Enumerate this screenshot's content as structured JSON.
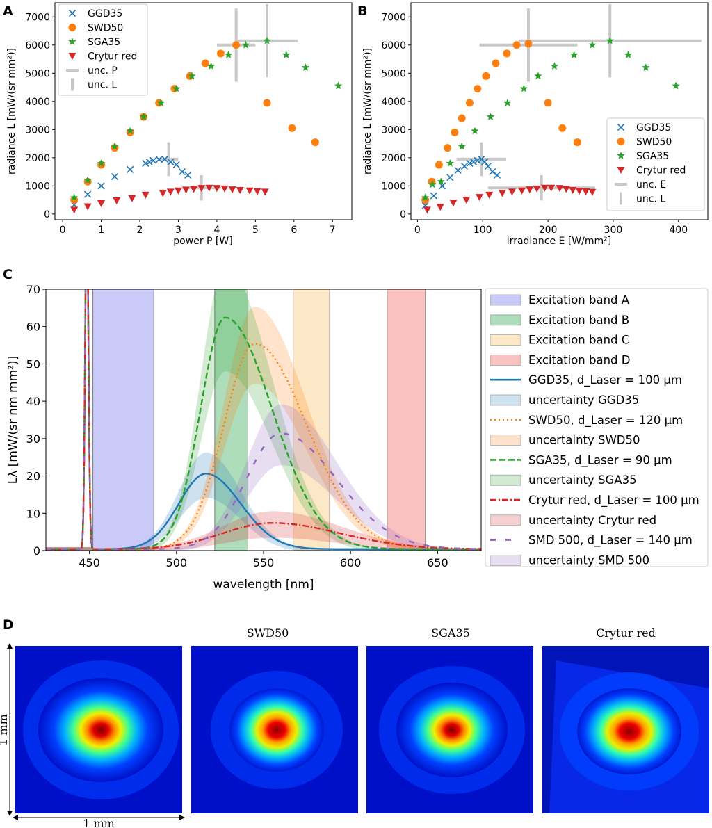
{
  "panels": {
    "A": {
      "label": "A"
    },
    "B": {
      "label": "B"
    },
    "C": {
      "label": "C"
    },
    "D": {
      "label": "D"
    }
  },
  "colors": {
    "GGD35": "#1f77b4",
    "SWD50": "#ff7f0e",
    "SGA35": "#2ca02c",
    "Crytur": "#d62728",
    "SMD500": "#9467bd",
    "unc": "#c8c8c8"
  },
  "chart_data": [
    {
      "id": "A",
      "type": "scatter",
      "xlabel": "power P [W]",
      "ylabel": "radiance L [mW/(sr mm²)]",
      "xlim": [
        -0.2,
        7.5
      ],
      "ylim": [
        -200,
        7500
      ],
      "xticks": [
        "0",
        "1",
        "2",
        "3",
        "4",
        "5",
        "6",
        "7"
      ],
      "yticks": [
        "0",
        "1000",
        "2000",
        "3000",
        "4000",
        "5000",
        "6000",
        "7000"
      ],
      "legend_position": "upper-left",
      "legend": [
        "GGD35",
        "SWD50",
        "SGA35",
        "Crytur red",
        "unc. P",
        "unc. L"
      ],
      "series": [
        {
          "name": "GGD35",
          "marker": "x",
          "x": [
            0.3,
            0.65,
            1.0,
            1.35,
            1.75,
            2.15,
            2.25,
            2.35,
            2.5,
            2.65,
            2.8,
            2.95,
            3.1,
            3.25
          ],
          "y": [
            330,
            700,
            1000,
            1330,
            1580,
            1800,
            1850,
            1900,
            1940,
            1950,
            1850,
            1750,
            1500,
            1380
          ]
        },
        {
          "name": "SWD50",
          "marker": "o",
          "x": [
            0.3,
            0.65,
            1.0,
            1.35,
            1.75,
            2.1,
            2.5,
            2.9,
            3.3,
            3.7,
            4.1,
            4.5,
            5.3,
            5.95,
            6.55
          ],
          "y": [
            500,
            1150,
            1750,
            2350,
            2900,
            3450,
            3950,
            4450,
            4900,
            5350,
            5700,
            6000,
            3950,
            3050,
            2550
          ]
        },
        {
          "name": "SGA35",
          "marker": "*",
          "x": [
            0.3,
            0.65,
            1.0,
            1.35,
            1.75,
            2.1,
            2.55,
            2.95,
            3.35,
            3.85,
            4.3,
            4.75,
            5.3,
            5.8,
            6.3,
            7.15
          ],
          "y": [
            580,
            1200,
            1800,
            2400,
            2950,
            3450,
            3950,
            4450,
            4900,
            5250,
            5650,
            6000,
            6150,
            5650,
            5200,
            4550
          ]
        },
        {
          "name": "Crytur red",
          "marker": "v",
          "x": [
            0.3,
            0.65,
            1.0,
            1.4,
            1.8,
            2.15,
            2.6,
            2.8,
            3.0,
            3.2,
            3.4,
            3.6,
            3.8,
            4.0,
            4.2,
            4.4,
            4.6,
            4.85,
            5.05,
            5.25
          ],
          "y": [
            150,
            270,
            380,
            480,
            560,
            680,
            740,
            790,
            830,
            860,
            890,
            920,
            930,
            920,
            900,
            870,
            850,
            830,
            810,
            790
          ]
        }
      ],
      "uncertainty": [
        {
          "x": 5.3,
          "y": 6150,
          "dx": 0.8,
          "dy": 1300
        },
        {
          "x": 4.5,
          "y": 6000,
          "dx": 0.5,
          "dy": 1300
        },
        {
          "x": 2.75,
          "y": 1950,
          "dx": 0.25,
          "dy": 600
        },
        {
          "x": 3.6,
          "y": 930,
          "dx": 0.5,
          "dy": 450
        }
      ]
    },
    {
      "id": "B",
      "type": "scatter",
      "xlabel": "irradiance E [W/mm²]",
      "ylabel": "radiance L [mW/(sr mm²)]",
      "xlim": [
        -10,
        445
      ],
      "ylim": [
        -200,
        7500
      ],
      "xticks": [
        "0",
        "100",
        "200",
        "300",
        "400"
      ],
      "yticks": [
        "0",
        "1000",
        "2000",
        "3000",
        "4000",
        "5000",
        "6000",
        "7000"
      ],
      "legend_position": "lower-right",
      "legend": [
        "GGD35",
        "SWD50",
        "SGA35",
        "Crytur red",
        "unc. E",
        "unc. L"
      ],
      "series": [
        {
          "name": "GGD35",
          "marker": "x",
          "x": [
            12,
            25,
            38,
            50,
            62,
            72,
            80,
            86,
            92,
            98,
            103,
            108,
            115,
            122
          ],
          "y": [
            300,
            650,
            1000,
            1300,
            1550,
            1700,
            1800,
            1850,
            1900,
            1950,
            1850,
            1700,
            1500,
            1380
          ]
        },
        {
          "name": "SWD50",
          "marker": "o",
          "x": [
            12,
            22,
            33,
            46,
            57,
            68,
            80,
            92,
            105,
            120,
            137,
            152,
            170,
            200,
            222,
            245
          ],
          "y": [
            500,
            1150,
            1750,
            2350,
            2900,
            3400,
            3950,
            4450,
            4900,
            5350,
            5700,
            6000,
            6050,
            3950,
            3050,
            2550
          ]
        },
        {
          "name": "SGA35",
          "marker": "*",
          "x": [
            12,
            23,
            36,
            50,
            68,
            88,
            112,
            138,
            163,
            185,
            210,
            240,
            268,
            295,
            323,
            350,
            396
          ],
          "y": [
            580,
            1050,
            1150,
            1800,
            2400,
            2950,
            3450,
            3950,
            4450,
            4900,
            5250,
            5650,
            6000,
            6150,
            5650,
            5200,
            4550
          ]
        },
        {
          "name": "Crytur red",
          "marker": "v",
          "x": [
            15,
            35,
            55,
            75,
            95,
            110,
            130,
            145,
            160,
            172,
            183,
            195,
            205,
            218,
            228,
            238,
            248,
            258,
            268
          ],
          "y": [
            150,
            250,
            400,
            500,
            600,
            680,
            740,
            790,
            830,
            870,
            900,
            930,
            930,
            920,
            890,
            850,
            820,
            800,
            780
          ]
        }
      ],
      "uncertainty": [
        {
          "x": 295,
          "y": 6150,
          "dx": 140,
          "dy": 1300
        },
        {
          "x": 170,
          "y": 6000,
          "dx": 75,
          "dy": 1300
        },
        {
          "x": 98,
          "y": 1950,
          "dx": 38,
          "dy": 600
        },
        {
          "x": 190,
          "y": 930,
          "dx": 82,
          "dy": 450
        }
      ]
    },
    {
      "id": "C",
      "type": "line",
      "xlabel": "wavelength [nm]",
      "ylabel": "Lλ [mW/(sr nm mm²)]",
      "xlim": [
        425,
        675
      ],
      "ylim": [
        0,
        70
      ],
      "xticks": [
        "450",
        "500",
        "550",
        "600",
        "650"
      ],
      "yticks": [
        "0",
        "10",
        "20",
        "30",
        "40",
        "50",
        "60",
        "70"
      ],
      "legend_position": "outside-right",
      "bands": [
        {
          "name": "Excitation band A",
          "x0": 452,
          "x1": 487,
          "color": "#8080f0"
        },
        {
          "name": "Excitation band B",
          "x0": 522,
          "x1": 541,
          "color": "#3fae5e"
        },
        {
          "name": "Excitation band C",
          "x0": 567,
          "x1": 588,
          "color": "#f7c97a"
        },
        {
          "name": "Excitation band D",
          "x0": 621,
          "x1": 643,
          "color": "#f26b6b"
        }
      ],
      "series": [
        {
          "name": "GGD35, d_Laser = 100 µm",
          "uncertainty_label": "uncertainty GGD35",
          "style": "solid",
          "peak": 20.2,
          "mu": 517,
          "sl": 22,
          "sr": 28,
          "unc": 0.28
        },
        {
          "name": "SWD50, d_Laser = 120 µm",
          "uncertainty_label": "uncertainty SWD50",
          "style": "dotted",
          "peak": 55,
          "mu": 545,
          "sl": 25,
          "sr": 42,
          "unc": 0.18
        },
        {
          "name": "SGA35, d_Laser = 90 µm",
          "uncertainty_label": "uncertainty SGA35",
          "style": "dashed",
          "peak": 62,
          "mu": 528,
          "sl": 20,
          "sr": 38,
          "unc": 0.22
        },
        {
          "name": "Crytur red, d_Laser = 100 µm",
          "uncertainty_label": "uncertainty Crytur red",
          "style": "dashdot",
          "peak": 7,
          "mu": 555,
          "sl": 40,
          "sr": 55,
          "unc": 0.45
        },
        {
          "name": "SMD 500, d_Laser = 140 µm",
          "uncertainty_label": "uncertainty SMD 500",
          "style": "loosedash",
          "peak": 31,
          "mu": 560,
          "sl": 28,
          "sr": 45,
          "unc": 0.25
        }
      ]
    }
  ],
  "beam_profiles": {
    "titles": [
      "",
      "SWD50",
      "SGA35",
      "Crytur red"
    ],
    "vertical_scale": "1 mm",
    "horizontal_scale": "1 mm"
  }
}
